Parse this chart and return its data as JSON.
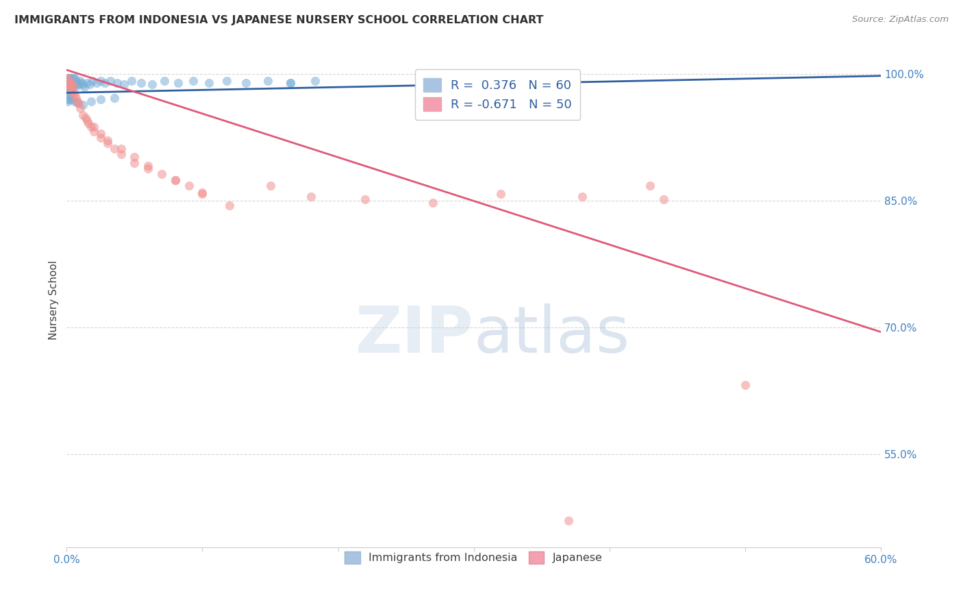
{
  "title": "IMMIGRANTS FROM INDONESIA VS JAPANESE NURSERY SCHOOL CORRELATION CHART",
  "source": "Source: ZipAtlas.com",
  "ylabel": "Nursery School",
  "xlim": [
    0.0,
    0.6
  ],
  "ylim": [
    0.44,
    1.025
  ],
  "xtick_positions": [
    0.0,
    0.1,
    0.2,
    0.3,
    0.4,
    0.5,
    0.6
  ],
  "xticklabels": [
    "0.0%",
    "",
    "",
    "",
    "",
    "",
    "60.0%"
  ],
  "ytick_positions": [
    1.0,
    0.85,
    0.7,
    0.55
  ],
  "ytick_labels": [
    "100.0%",
    "85.0%",
    "70.0%",
    "55.0%"
  ],
  "legend_r1": "R =  0.376",
  "legend_n1": "N = 60",
  "legend_r2": "R = -0.671",
  "legend_n2": "N = 50",
  "legend_color1": "#a8c4e0",
  "legend_color2": "#f4a0b0",
  "scatter_color1": "#7ab0d8",
  "scatter_color2": "#f09090",
  "line_color1": "#3060a0",
  "line_color2": "#e05878",
  "background_color": "#ffffff",
  "grid_color": "#cccccc",
  "title_color": "#303030",
  "axis_label_color": "#404040",
  "tick_label_color": "#4080c0",
  "indonesian_x": [
    0.001,
    0.001,
    0.001,
    0.001,
    0.001,
    0.001,
    0.002,
    0.002,
    0.002,
    0.002,
    0.003,
    0.003,
    0.003,
    0.004,
    0.004,
    0.004,
    0.005,
    0.005,
    0.006,
    0.006,
    0.007,
    0.007,
    0.008,
    0.009,
    0.01,
    0.011,
    0.012,
    0.013,
    0.015,
    0.017,
    0.019,
    0.022,
    0.025,
    0.028,
    0.032,
    0.037,
    0.042,
    0.048,
    0.055,
    0.063,
    0.072,
    0.082,
    0.093,
    0.105,
    0.118,
    0.132,
    0.148,
    0.165,
    0.183,
    0.165,
    0.001,
    0.002,
    0.003,
    0.004,
    0.006,
    0.008,
    0.012,
    0.018,
    0.025,
    0.035
  ],
  "indonesian_y": [
    0.995,
    0.99,
    0.985,
    0.98,
    0.975,
    0.97,
    0.995,
    0.99,
    0.985,
    0.98,
    0.995,
    0.99,
    0.985,
    0.995,
    0.99,
    0.985,
    0.995,
    0.99,
    0.995,
    0.988,
    0.992,
    0.986,
    0.99,
    0.988,
    0.992,
    0.99,
    0.988,
    0.985,
    0.99,
    0.988,
    0.992,
    0.99,
    0.992,
    0.99,
    0.992,
    0.99,
    0.988,
    0.992,
    0.99,
    0.988,
    0.992,
    0.99,
    0.992,
    0.99,
    0.992,
    0.99,
    0.992,
    0.99,
    0.992,
    0.99,
    0.968,
    0.97,
    0.972,
    0.97,
    0.968,
    0.966,
    0.964,
    0.968,
    0.97,
    0.972
  ],
  "japanese_x": [
    0.001,
    0.001,
    0.002,
    0.002,
    0.003,
    0.003,
    0.004,
    0.004,
    0.005,
    0.005,
    0.006,
    0.007,
    0.008,
    0.009,
    0.01,
    0.012,
    0.014,
    0.016,
    0.018,
    0.02,
    0.025,
    0.03,
    0.035,
    0.04,
    0.05,
    0.06,
    0.07,
    0.08,
    0.09,
    0.1,
    0.015,
    0.02,
    0.025,
    0.03,
    0.04,
    0.05,
    0.06,
    0.08,
    0.1,
    0.12,
    0.15,
    0.18,
    0.22,
    0.27,
    0.32,
    0.38,
    0.44,
    0.5,
    0.43,
    0.37
  ],
  "japanese_y": [
    0.995,
    0.988,
    0.992,
    0.985,
    0.99,
    0.982,
    0.988,
    0.98,
    0.985,
    0.978,
    0.975,
    0.972,
    0.968,
    0.965,
    0.96,
    0.952,
    0.948,
    0.942,
    0.938,
    0.932,
    0.925,
    0.918,
    0.912,
    0.905,
    0.895,
    0.888,
    0.882,
    0.875,
    0.868,
    0.86,
    0.945,
    0.938,
    0.93,
    0.922,
    0.912,
    0.902,
    0.892,
    0.875,
    0.858,
    0.845,
    0.868,
    0.855,
    0.852,
    0.848,
    0.858,
    0.855,
    0.852,
    0.632,
    0.868,
    0.472
  ],
  "line1_x": [
    0.0,
    0.6
  ],
  "line1_y": [
    0.978,
    0.998
  ],
  "line2_x": [
    0.0,
    0.6
  ],
  "line2_y": [
    1.005,
    0.695
  ]
}
